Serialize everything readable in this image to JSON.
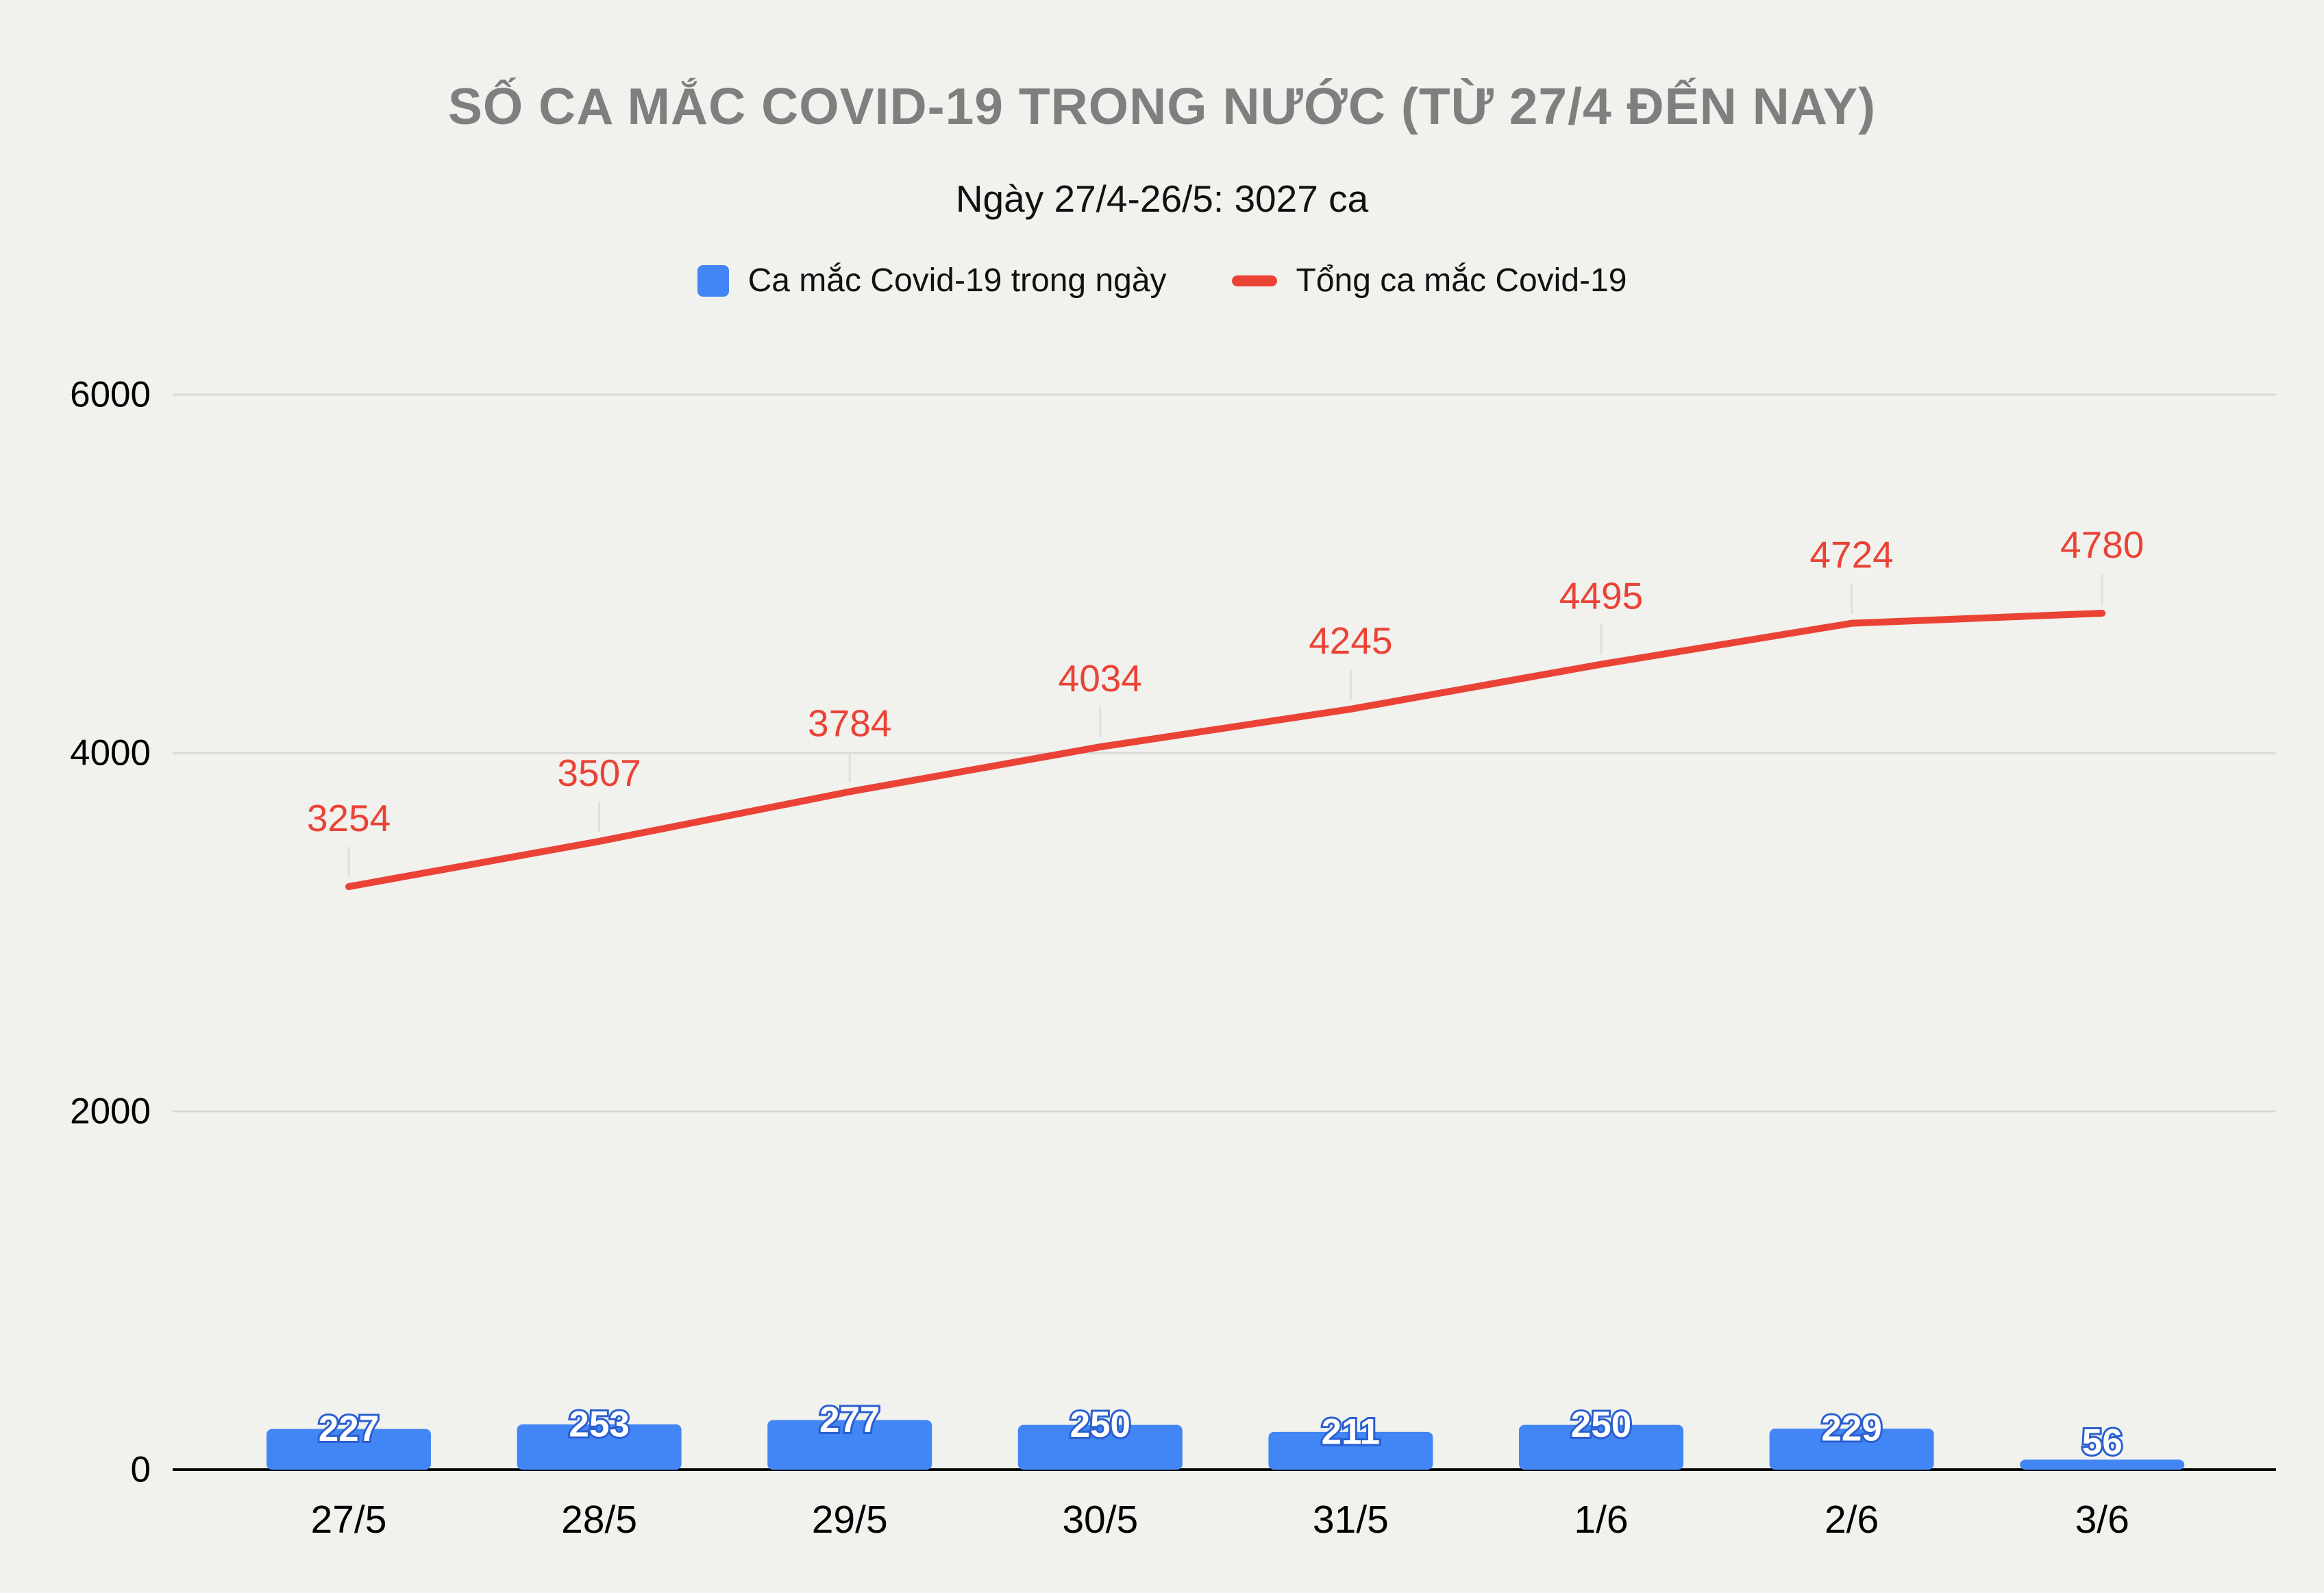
{
  "page": {
    "background_color": "#f1f1ee",
    "title_color": "#7f7f7f"
  },
  "chart_data": {
    "type": "combo",
    "title": "SỐ CA MẮC COVID-19 TRONG NƯỚC (TỪ 27/4 ĐẾN NAY)",
    "subtitle": "Ngày 27/4-26/5: 3027 ca",
    "categories": [
      "27/5",
      "28/5",
      "29/5",
      "30/5",
      "31/5",
      "1/6",
      "2/6",
      "3/6"
    ],
    "series": [
      {
        "name": "Ca mắc Covid-19 trong ngày",
        "type": "bar",
        "color": "#4285f4",
        "label_text_color": "#ffffff",
        "label_outline_color": "#2a5fd0",
        "values": [
          227,
          253,
          277,
          250,
          211,
          250,
          229,
          56
        ]
      },
      {
        "name": "Tổng ca mắc Covid-19",
        "type": "line",
        "color": "#ea4335",
        "values": [
          3254,
          3507,
          3784,
          4034,
          4245,
          4495,
          4724,
          4780
        ]
      }
    ],
    "yticks": [
      0,
      2000,
      4000,
      6000
    ],
    "ylim": [
      0,
      6000
    ],
    "grid": true,
    "gridline_color": "#d9d9d9",
    "axis_color": "#000000",
    "legend_position": "top"
  }
}
